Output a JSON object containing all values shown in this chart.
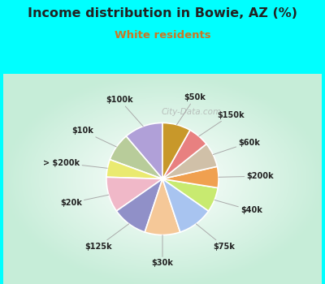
{
  "title": "Income distribution in Bowie, AZ (%)",
  "subtitle": "White residents",
  "title_color": "#222222",
  "subtitle_color": "#cc7722",
  "bg_cyan": "#00ffff",
  "labels": [
    "$100k",
    "$10k",
    "> $200k",
    "$20k",
    "$125k",
    "$30k",
    "$75k",
    "$40k",
    "$200k",
    "$60k",
    "$150k",
    "$50k"
  ],
  "values": [
    11,
    8,
    5,
    10,
    10,
    10,
    10,
    7,
    6,
    7,
    6,
    8
  ],
  "colors": [
    "#b0a0d8",
    "#b8cc9a",
    "#eaea70",
    "#f0b8c8",
    "#9090c8",
    "#f5c898",
    "#a8c4f0",
    "#c8ea70",
    "#f0a050",
    "#d0c0a8",
    "#e88080",
    "#c8982a"
  ],
  "wedge_edge_color": "#ffffff",
  "wedge_edge_width": 1.2,
  "startangle": 90,
  "watermark": "City-Data.com"
}
